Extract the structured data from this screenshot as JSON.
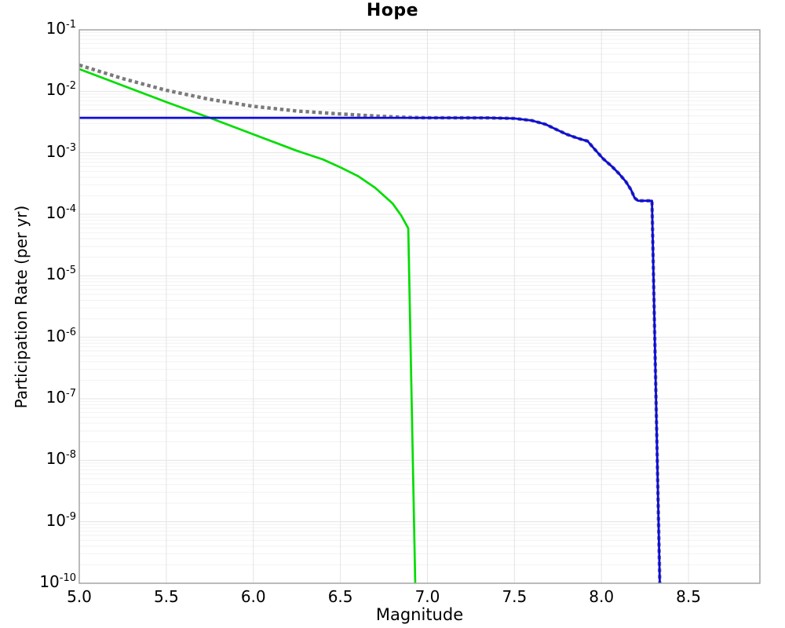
{
  "chart_data": {
    "type": "line",
    "title": "Hope",
    "xlabel": "Magnitude",
    "ylabel": "Participation Rate (per yr)",
    "x_min": 5.0,
    "x_max": 8.91,
    "y_max_exp": -1,
    "y_min_exp": -10,
    "grid": true,
    "legend": "none",
    "x_ticks": [
      {
        "label": "5.0",
        "value": 5.0
      },
      {
        "label": "5.5",
        "value": 5.5
      },
      {
        "label": "6.0",
        "value": 6.0
      },
      {
        "label": "6.5",
        "value": 6.5
      },
      {
        "label": "7.0",
        "value": 7.0
      },
      {
        "label": "7.5",
        "value": 7.5
      },
      {
        "label": "8.0",
        "value": 8.0
      },
      {
        "label": "8.5",
        "value": 8.5
      }
    ],
    "y_ticks": [
      {
        "base": "10",
        "exp": "-1",
        "value": 0.1
      },
      {
        "base": "10",
        "exp": "-2",
        "value": 0.01
      },
      {
        "base": "10",
        "exp": "-3",
        "value": 0.001
      },
      {
        "base": "10",
        "exp": "-4",
        "value": 0.0001
      },
      {
        "base": "10",
        "exp": "-5",
        "value": 1e-05
      },
      {
        "base": "10",
        "exp": "-6",
        "value": 1e-06
      },
      {
        "base": "10",
        "exp": "-7",
        "value": 1e-07
      },
      {
        "base": "10",
        "exp": "-8",
        "value": 1e-08
      },
      {
        "base": "10",
        "exp": "-9",
        "value": 1e-09
      },
      {
        "base": "10",
        "exp": "-10",
        "value": 1e-10
      }
    ],
    "colors": {
      "minor_grid": "#f2f2f2",
      "major_grid": "#e4e4e4",
      "frame": "#9e9e9e",
      "total_dotted": "#7a7a7a",
      "green_curve": "#00dd00",
      "blue_curve": "#0b0bdd"
    },
    "series": [
      {
        "name": "total_rate_dotted",
        "color": "#7a7a7a",
        "style": "dotted",
        "width": 4.4,
        "dash": "4.4 3.8",
        "points": [
          [
            5.0,
            0.0267
          ],
          [
            5.25,
            0.0161
          ],
          [
            5.5,
            0.0104
          ],
          [
            5.75,
            0.0074
          ],
          [
            6.0,
            0.0057
          ],
          [
            6.25,
            0.00478
          ],
          [
            6.4,
            0.00448
          ],
          [
            6.5,
            0.00428
          ],
          [
            6.6,
            0.00412
          ],
          [
            6.7,
            0.00397
          ],
          [
            6.8,
            0.00385
          ],
          [
            6.9,
            0.00376
          ],
          [
            7.0,
            0.00371
          ],
          [
            7.35,
            0.0037
          ],
          [
            7.5,
            0.00362
          ],
          [
            7.6,
            0.00335
          ],
          [
            7.68,
            0.0029
          ],
          [
            7.74,
            0.0024
          ],
          [
            7.8,
            0.002
          ],
          [
            7.85,
            0.00178
          ],
          [
            7.88,
            0.00167
          ],
          [
            7.92,
            0.00155
          ],
          [
            7.96,
            0.00115
          ],
          [
            8.01,
            0.0008
          ],
          [
            8.06,
            0.0006
          ],
          [
            8.1,
            0.00046
          ],
          [
            8.14,
            0.00034
          ],
          [
            8.17,
            0.00025
          ],
          [
            8.19,
            0.000185
          ],
          [
            8.21,
            0.000166
          ],
          [
            8.29,
            0.000166
          ],
          [
            8.335,
            1e-10
          ]
        ]
      },
      {
        "name": "rate_green",
        "color": "#00dd00",
        "style": "solid",
        "width": 2.7,
        "dash": null,
        "points": [
          [
            5.0,
            0.023
          ],
          [
            5.25,
            0.0124
          ],
          [
            5.5,
            0.0067
          ],
          [
            5.75,
            0.0037
          ],
          [
            6.0,
            0.002
          ],
          [
            6.25,
            0.00108
          ],
          [
            6.4,
            0.00078
          ],
          [
            6.5,
            0.00058
          ],
          [
            6.6,
            0.00042
          ],
          [
            6.7,
            0.00027
          ],
          [
            6.8,
            0.00015
          ],
          [
            6.85,
            9.5e-05
          ],
          [
            6.89,
            5.9e-05
          ],
          [
            6.93,
            1e-10
          ]
        ]
      },
      {
        "name": "rate_blue",
        "color": "#0b0bdd",
        "style": "solid",
        "width": 2.8,
        "dash": null,
        "points": [
          [
            5.0,
            0.0037
          ],
          [
            7.0,
            0.0037
          ],
          [
            7.35,
            0.0037
          ],
          [
            7.5,
            0.00362
          ],
          [
            7.6,
            0.00335
          ],
          [
            7.68,
            0.0029
          ],
          [
            7.74,
            0.0024
          ],
          [
            7.8,
            0.002
          ],
          [
            7.85,
            0.00178
          ],
          [
            7.88,
            0.00167
          ],
          [
            7.92,
            0.00155
          ],
          [
            7.96,
            0.00115
          ],
          [
            8.01,
            0.0008
          ],
          [
            8.06,
            0.0006
          ],
          [
            8.1,
            0.00046
          ],
          [
            8.14,
            0.00034
          ],
          [
            8.17,
            0.00025
          ],
          [
            8.19,
            0.000185
          ],
          [
            8.21,
            0.000166
          ],
          [
            8.29,
            0.000166
          ],
          [
            8.335,
            1e-10
          ]
        ]
      }
    ]
  }
}
